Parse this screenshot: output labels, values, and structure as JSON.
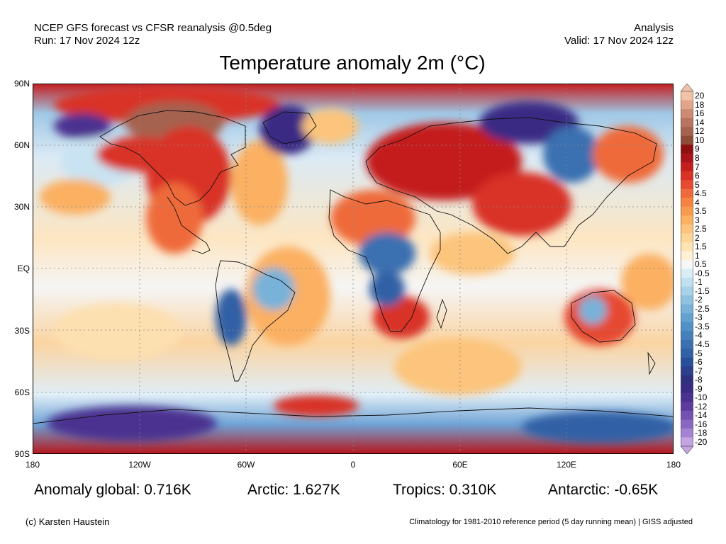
{
  "header": {
    "model": "NCEP GFS forecast vs CFSR reanalysis @0.5deg",
    "run": "Run: 17 Nov 2024 12z",
    "analysis": "Analysis",
    "valid": "Valid: 17 Nov 2024 12z"
  },
  "title": "Temperature anomaly 2m (°C)",
  "lat_labels": [
    "90N",
    "60N",
    "30N",
    "EQ",
    "30S",
    "60S",
    "90S"
  ],
  "lon_labels": [
    "180",
    "120W",
    "60W",
    "0",
    "60E",
    "120E",
    "180"
  ],
  "colorbar": {
    "labels": [
      "20",
      "18",
      "16",
      "14",
      "12",
      "10",
      "9",
      "8",
      "7",
      "6",
      "5",
      "4.5",
      "4",
      "3.5",
      "3",
      "2.5",
      "2",
      "1.5",
      "1",
      "0.5",
      "-0.5",
      "-1",
      "-1.5",
      "-2",
      "-2.5",
      "-3",
      "-3.5",
      "-4",
      "-4.5",
      "-5",
      "-6",
      "-7",
      "-8",
      "-9",
      "-10",
      "-12",
      "-14",
      "-16",
      "-18",
      "-20"
    ],
    "colors": [
      "#f2c2a8",
      "#e2a48a",
      "#cd8b74",
      "#b87460",
      "#a5624f",
      "#8e4b38",
      "#8e0f12",
      "#a8141a",
      "#c41e1f",
      "#d93326",
      "#e64a30",
      "#ef6a3a",
      "#f58442",
      "#f89a4e",
      "#fbb062",
      "#fcc47c",
      "#fdd596",
      "#fee3b3",
      "#fff0d6",
      "#f7f7f7",
      "#d9edf7",
      "#c0e0f0",
      "#a8d1ea",
      "#8fc2e1",
      "#78b2d8",
      "#63a2cf",
      "#5291c5",
      "#4580bb",
      "#3b70b1",
      "#3261a6",
      "#2a4f99",
      "#2b3f8a",
      "#2f307e",
      "#3a2c84",
      "#4b3190",
      "#5d3c9e",
      "#7350b1",
      "#8a67c1",
      "#a682d3",
      "#c4a5e4"
    ]
  },
  "stats": {
    "global": "Anomaly global: 0.716K",
    "arctic": "Arctic: 1.627K",
    "tropics": "Tropics: 0.310K",
    "antarctic": "Antarctic: -0.65K"
  },
  "footer": {
    "credit": "(c) Karsten Haustein",
    "climatology": "Climatology for 1981-2010 reference period (5 day running mean) | GISS adjusted"
  }
}
